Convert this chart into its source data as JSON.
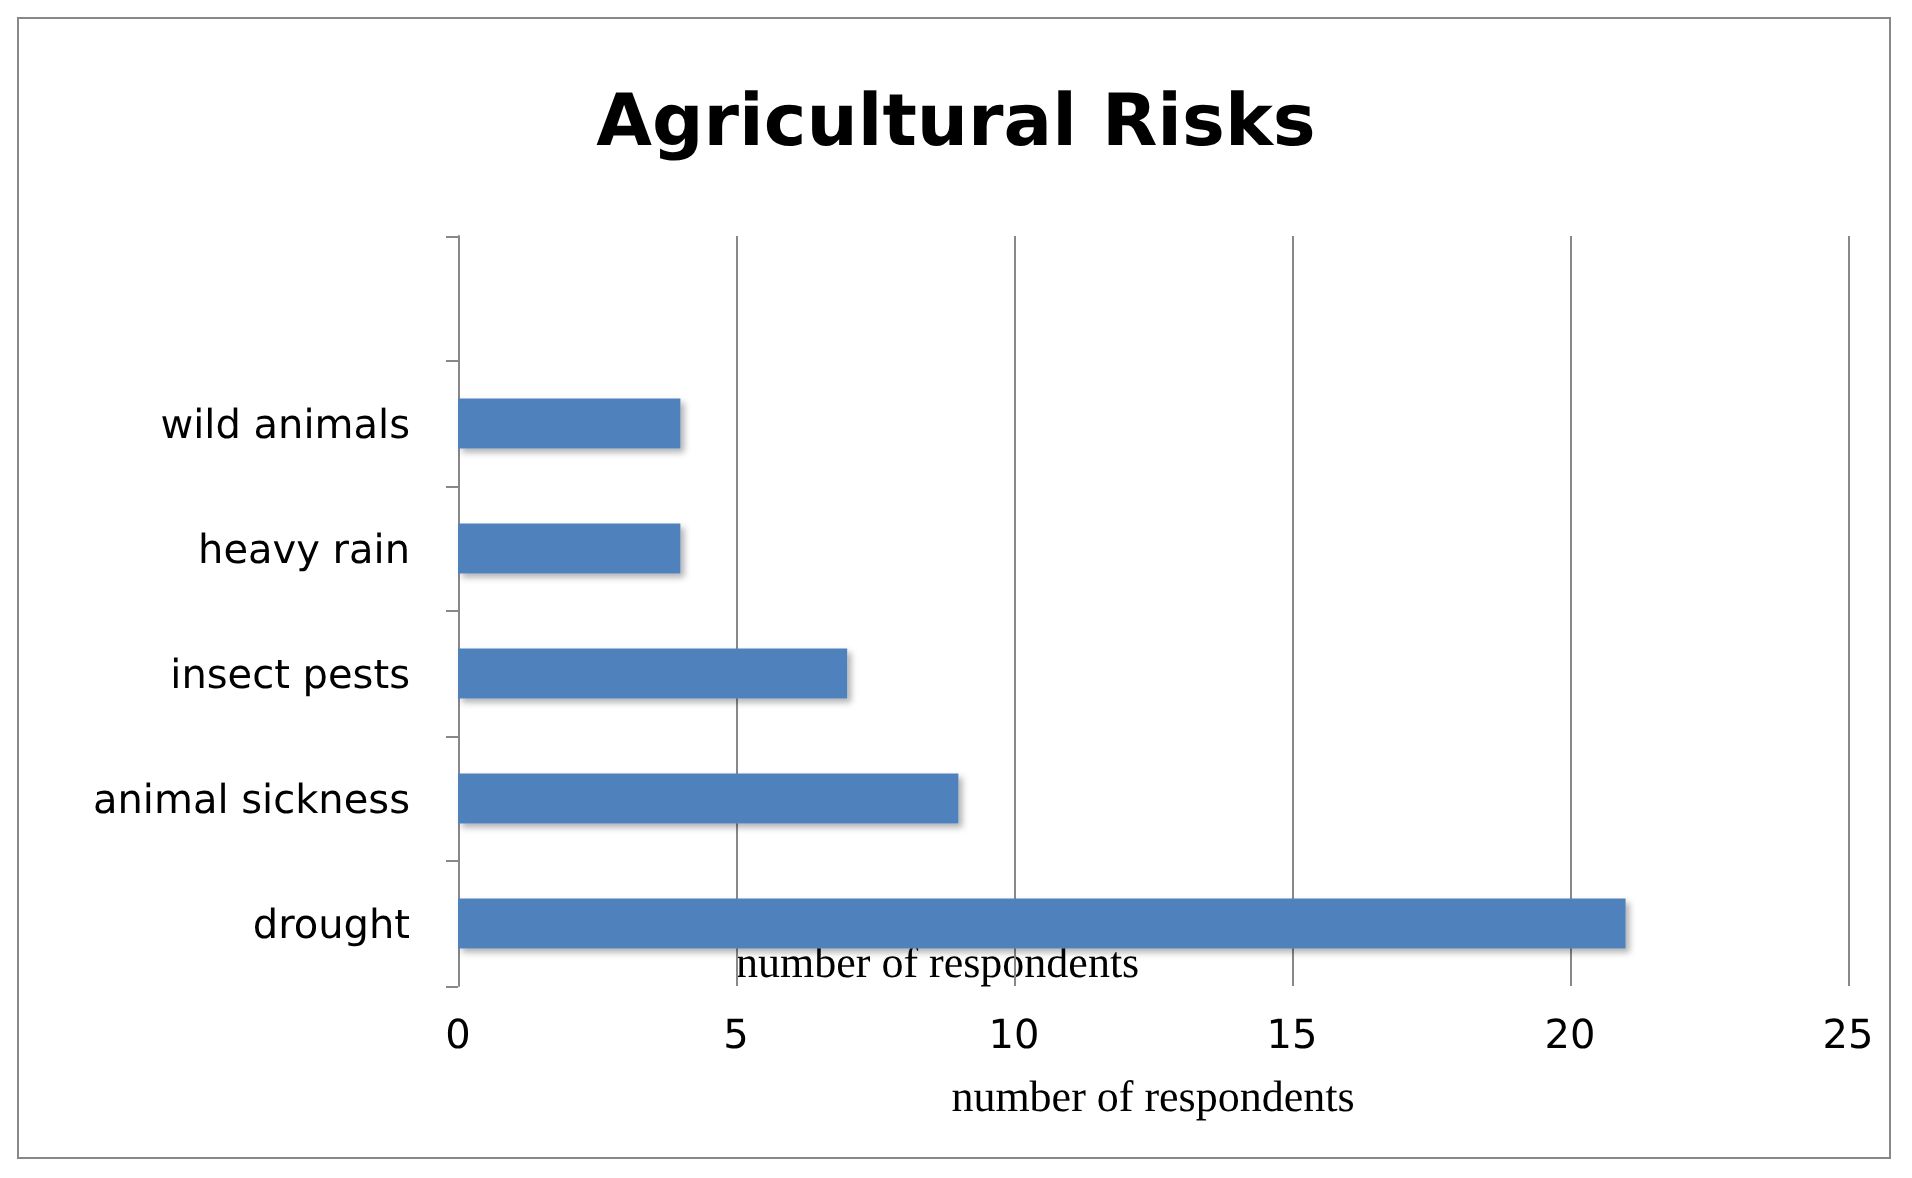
{
  "chart_data": {
    "type": "bar",
    "orientation": "horizontal",
    "title": "Agricultural Risks",
    "categories": [
      null,
      "wild animals",
      "heavy rain",
      "insect pests",
      "animal sickness",
      "drought"
    ],
    "values": [
      null,
      4,
      4,
      7,
      9,
      21
    ],
    "color": "#4f81bd",
    "xlim": [
      0,
      25
    ],
    "xticks": [
      0,
      5,
      10,
      15,
      20,
      25
    ],
    "grid": "x",
    "xlabel": "number of respondents",
    "annotations": [
      "number of respondents"
    ]
  }
}
